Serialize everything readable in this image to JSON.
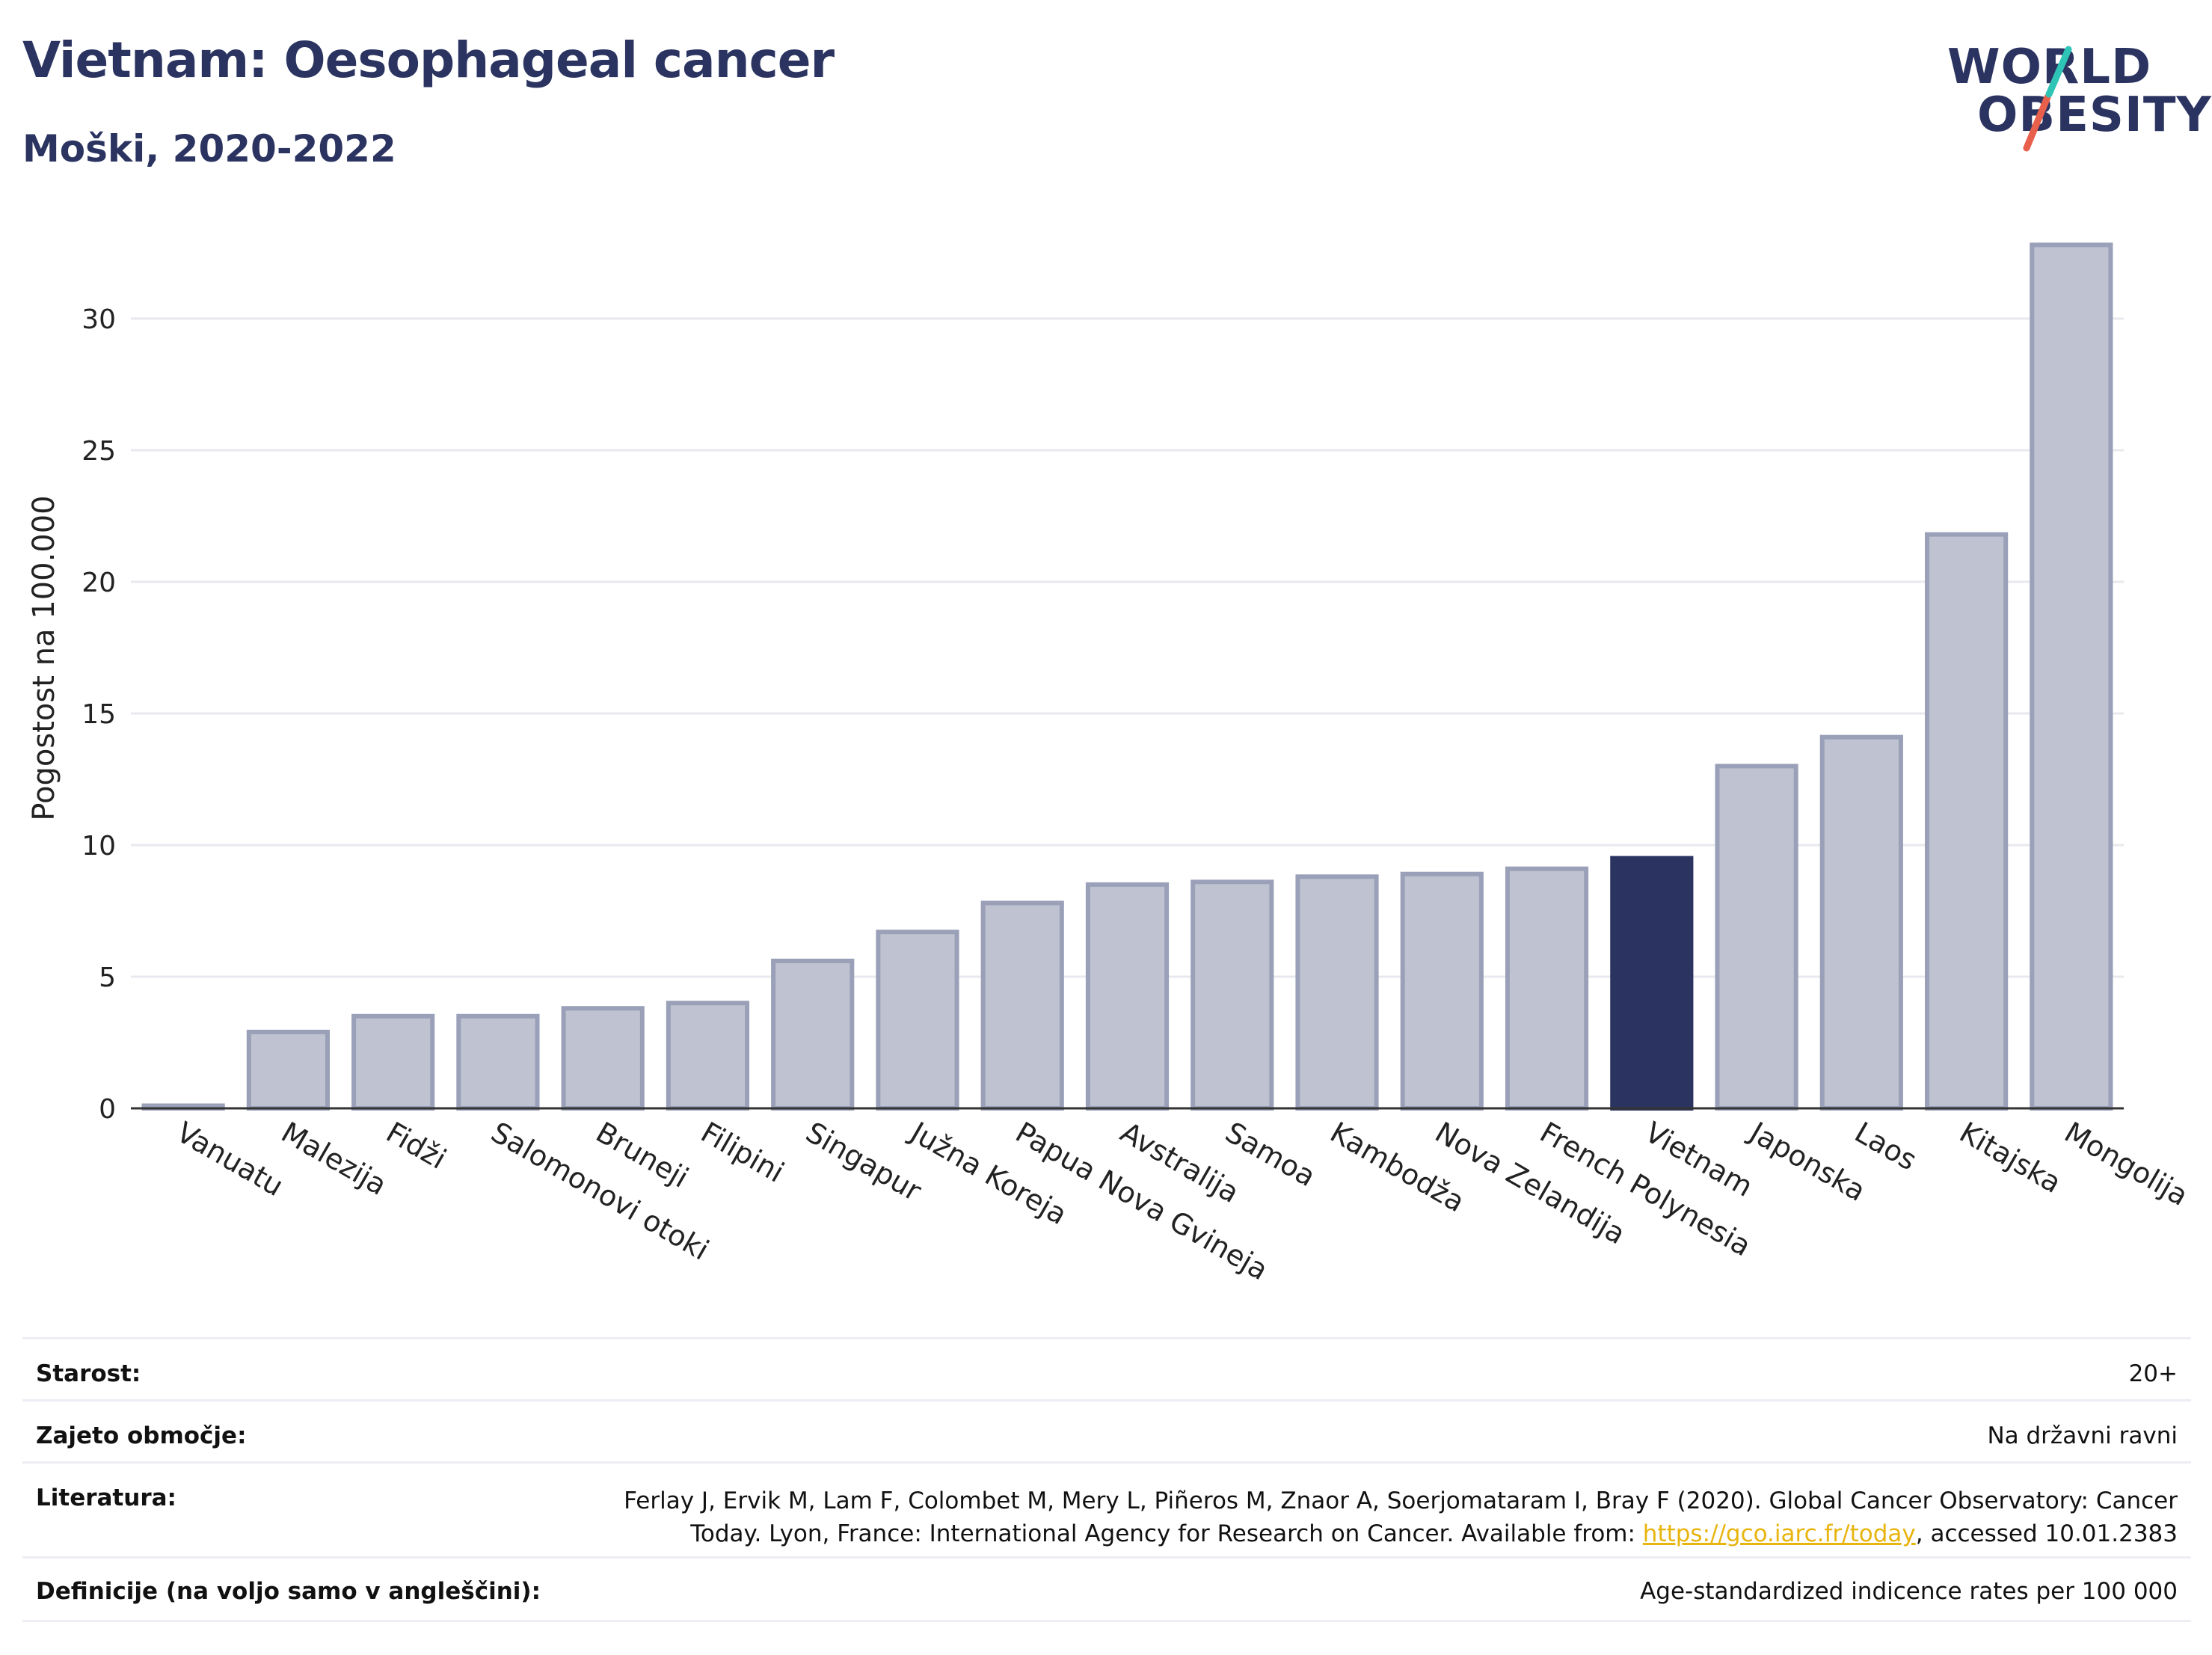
{
  "header": {
    "title": "Vietnam: Oesophageal cancer",
    "subtitle": "Moški, 2020-2022"
  },
  "logo": {
    "line1": "WORLD",
    "line2": "OBESITY",
    "accent_colors": [
      "#2ec4b6",
      "#e8604c"
    ]
  },
  "colors": {
    "bar_default": "#bfc3d1",
    "bar_border": "#9aa0b8",
    "bar_highlight": "#2b3461",
    "title": "#2b3461"
  },
  "chart_data": {
    "type": "bar",
    "categories": [
      "Vanuatu",
      "Malezija",
      "Fidži",
      "Salomonovi otoki",
      "Bruneji",
      "Filipini",
      "Singapur",
      "Južna Koreja",
      "Papua Nova Gvineja",
      "Avstralija",
      "Samoa",
      "Kambodža",
      "Nova Zelandija",
      "French Polynesia",
      "Vietnam",
      "Japonska",
      "Laos",
      "Kitajska",
      "Mongolija"
    ],
    "values": [
      0.1,
      2.9,
      3.5,
      3.5,
      3.8,
      4.0,
      5.6,
      6.7,
      7.8,
      8.5,
      8.6,
      8.8,
      8.9,
      9.1,
      9.5,
      13.0,
      14.1,
      21.8,
      32.8
    ],
    "highlight": "Vietnam",
    "ylabel": "Pogostost na 100.000",
    "yticks": [
      0,
      5,
      10,
      15,
      20,
      25,
      30
    ],
    "ylim": [
      0,
      33
    ],
    "grid": true
  },
  "info": {
    "age_label": "Starost:",
    "age_value": "20+",
    "coverage_label": "Zajeto območje:",
    "coverage_value": "Na državni ravni",
    "literature_label": "Literatura:",
    "literature_line1": "Ferlay J, Ervik M, Lam F, Colombet M, Mery L, Piñeros M, Znaor A, Soerjomataram I, Bray F (2020). Global Cancer Observatory: Cancer",
    "literature_line2_pre": "Today. Lyon, France: International Agency for Research on Cancer. Available from: ",
    "literature_link": "https://gco.iarc.fr/today",
    "literature_line2_post": ", accessed 10.01.2383",
    "definitions_label": "Definicije (na voljo samo v angleščini):",
    "definitions_value": "Age-standardized indicence rates per 100 000"
  }
}
